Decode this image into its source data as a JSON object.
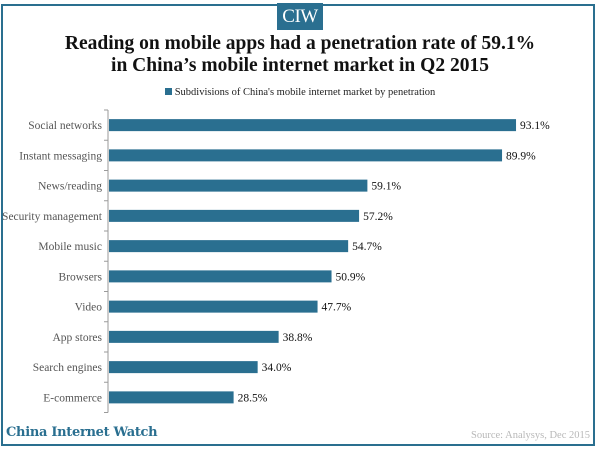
{
  "logo": "CIW",
  "chart_data": {
    "type": "bar",
    "orientation": "horizontal",
    "title_line1": "Reading on mobile apps had a penetration rate of 59.1%",
    "title_line2": "in China’s mobile internet market in Q2 2015",
    "legend": "Subdivisions of China's mobile internet market by penetration",
    "legend_position": "top",
    "categories": [
      "Social networks",
      "Instant messaging",
      "News/reading",
      "Security management",
      "Mobile music",
      "Browsers",
      "Video",
      "App stores",
      "Search engines",
      "E-commerce"
    ],
    "series": [
      {
        "name": "Subdivisions of China's mobile internet market by penetration",
        "values": [
          93.1,
          89.9,
          59.1,
          57.2,
          54.7,
          50.9,
          47.7,
          38.8,
          34.0,
          28.5
        ]
      }
    ],
    "value_labels": [
      "93.1%",
      "89.9%",
      "59.1%",
      "57.2%",
      "54.7%",
      "50.9%",
      "47.7%",
      "38.8%",
      "34.0%",
      "28.5%"
    ],
    "xlim": [
      0,
      100
    ],
    "grid": false,
    "color": "#2a6f90"
  },
  "footer": {
    "brand": "China Internet Watch",
    "source": "Source: Analysys, Dec 2015"
  }
}
